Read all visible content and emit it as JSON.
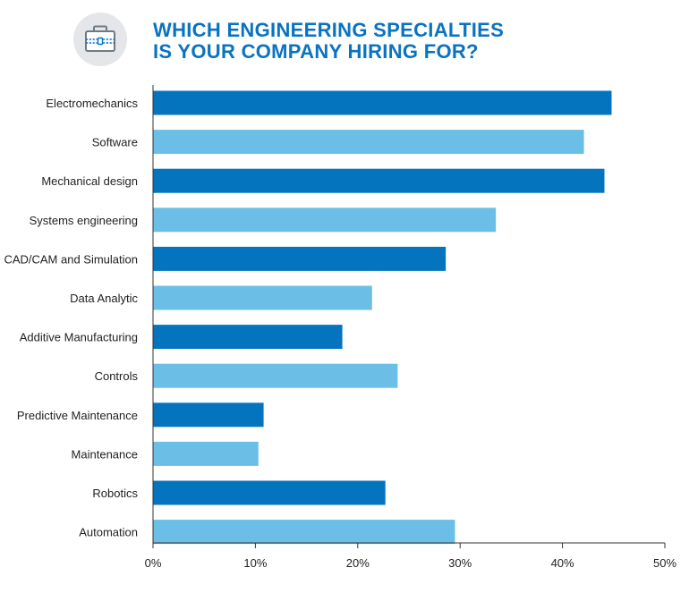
{
  "header": {
    "icon": "briefcase-icon",
    "title_line1": "WHICH ENGINEERING SPECIALTIES",
    "title_line2": "IS YOUR COMPANY HIRING FOR?"
  },
  "colors": {
    "title": "#0a73c0",
    "icon_circle": "#e4e6e9",
    "bar_dark": "#0574bf",
    "bar_light": "#6bbfe6",
    "axis": "#333333"
  },
  "chart_data": {
    "type": "bar",
    "orientation": "horizontal",
    "title": "WHICH ENGINEERING SPECIALTIES IS YOUR COMPANY HIRING FOR?",
    "categories": [
      "Electromechanics",
      "Software",
      "Mechanical design",
      "Systems engineering",
      "CAD/CAM and Simulation",
      "Data Analytic",
      "Additive Manufacturing",
      "Controls",
      "Predictive Maintenance",
      "Maintenance",
      "Robotics",
      "Automation"
    ],
    "values": [
      44.8,
      42.1,
      44.1,
      33.5,
      28.6,
      21.4,
      18.5,
      23.9,
      10.8,
      10.3,
      22.7,
      29.5
    ],
    "bar_colors": [
      "dark",
      "light",
      "dark",
      "light",
      "dark",
      "light",
      "dark",
      "light",
      "dark",
      "light",
      "dark",
      "light"
    ],
    "xlim": [
      0,
      50
    ],
    "xticks": [
      "0%",
      "10%",
      "20%",
      "30%",
      "40%",
      "50%"
    ],
    "xlabel": "",
    "ylabel": "",
    "grid": false,
    "legend": "none"
  }
}
